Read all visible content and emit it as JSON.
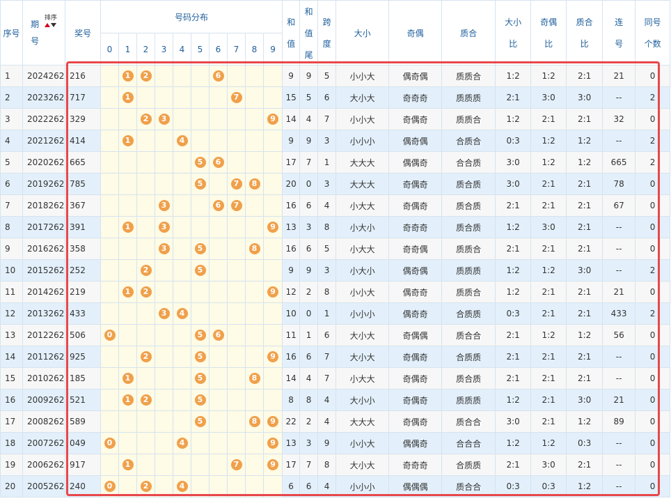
{
  "headers": {
    "seq": "序号",
    "period_line1": "期",
    "period_line2": "号",
    "sort_label": "排序",
    "prize": "奖号",
    "distribution": "号码分布",
    "digits": [
      "0",
      "1",
      "2",
      "3",
      "4",
      "5",
      "6",
      "7",
      "8",
      "9"
    ],
    "sum_line1": "和",
    "sum_line2": "值",
    "sumtail_line1": "和",
    "sumtail_line2": "值",
    "sumtail_line3": "尾",
    "span_line1": "跨",
    "span_line2": "度",
    "size": "大小",
    "parity": "奇偶",
    "prime": "质合",
    "size_ratio_line1": "大小",
    "size_ratio_line2": "比",
    "parity_ratio_line1": "奇偶",
    "parity_ratio_line2": "比",
    "prime_ratio_line1": "质合",
    "prime_ratio_line2": "比",
    "consec_line1": "连",
    "consec_line2": "号",
    "same_line1": "同号",
    "same_line2": "个数"
  },
  "colors": {
    "ball": "#f0a04b",
    "header_text": "#1e5f9c",
    "highlight_box": "#e8474a",
    "row_alt": "#e3f0fb",
    "dist_bg": "#fefbe6"
  },
  "rows": [
    {
      "seq": "1",
      "period": "2024262",
      "prize": "216",
      "sum": "9",
      "tail": "9",
      "span": "5",
      "size": "小小大",
      "parity": "偶奇偶",
      "prime": "质质合",
      "size_ratio": "1:2",
      "parity_ratio": "1:2",
      "prime_ratio": "2:1",
      "consec": "21",
      "same": "0"
    },
    {
      "seq": "2",
      "period": "2023262",
      "prize": "717",
      "sum": "15",
      "tail": "5",
      "span": "6",
      "size": "大小大",
      "parity": "奇奇奇",
      "prime": "质质质",
      "size_ratio": "2:1",
      "parity_ratio": "3:0",
      "prime_ratio": "3:0",
      "consec": "--",
      "same": "2"
    },
    {
      "seq": "3",
      "period": "2022262",
      "prize": "329",
      "sum": "14",
      "tail": "4",
      "span": "7",
      "size": "小小大",
      "parity": "奇偶奇",
      "prime": "质质合",
      "size_ratio": "1:2",
      "parity_ratio": "2:1",
      "prime_ratio": "2:1",
      "consec": "32",
      "same": "0"
    },
    {
      "seq": "4",
      "period": "2021262",
      "prize": "414",
      "sum": "9",
      "tail": "9",
      "span": "3",
      "size": "小小小",
      "parity": "偶奇偶",
      "prime": "合质合",
      "size_ratio": "0:3",
      "parity_ratio": "1:2",
      "prime_ratio": "1:2",
      "consec": "--",
      "same": "2"
    },
    {
      "seq": "5",
      "period": "2020262",
      "prize": "665",
      "sum": "17",
      "tail": "7",
      "span": "1",
      "size": "大大大",
      "parity": "偶偶奇",
      "prime": "合合质",
      "size_ratio": "3:0",
      "parity_ratio": "1:2",
      "prime_ratio": "1:2",
      "consec": "665",
      "same": "2"
    },
    {
      "seq": "6",
      "period": "2019262",
      "prize": "785",
      "sum": "20",
      "tail": "0",
      "span": "3",
      "size": "大大大",
      "parity": "奇偶奇",
      "prime": "质合质",
      "size_ratio": "3:0",
      "parity_ratio": "2:1",
      "prime_ratio": "2:1",
      "consec": "78",
      "same": "0"
    },
    {
      "seq": "7",
      "period": "2018262",
      "prize": "367",
      "sum": "16",
      "tail": "6",
      "span": "4",
      "size": "小大大",
      "parity": "奇偶奇",
      "prime": "质合质",
      "size_ratio": "2:1",
      "parity_ratio": "2:1",
      "prime_ratio": "2:1",
      "consec": "67",
      "same": "0"
    },
    {
      "seq": "8",
      "period": "2017262",
      "prize": "391",
      "sum": "13",
      "tail": "3",
      "span": "8",
      "size": "小大小",
      "parity": "奇奇奇",
      "prime": "质合质",
      "size_ratio": "1:2",
      "parity_ratio": "3:0",
      "prime_ratio": "2:1",
      "consec": "--",
      "same": "0"
    },
    {
      "seq": "9",
      "period": "2016262",
      "prize": "358",
      "sum": "16",
      "tail": "6",
      "span": "5",
      "size": "小大大",
      "parity": "奇奇偶",
      "prime": "质质合",
      "size_ratio": "2:1",
      "parity_ratio": "2:1",
      "prime_ratio": "2:1",
      "consec": "--",
      "same": "0"
    },
    {
      "seq": "10",
      "period": "2015262",
      "prize": "252",
      "sum": "9",
      "tail": "9",
      "span": "3",
      "size": "小大小",
      "parity": "偶奇偶",
      "prime": "质质质",
      "size_ratio": "1:2",
      "parity_ratio": "1:2",
      "prime_ratio": "3:0",
      "consec": "--",
      "same": "2"
    },
    {
      "seq": "11",
      "period": "2014262",
      "prize": "219",
      "sum": "12",
      "tail": "2",
      "span": "8",
      "size": "小小大",
      "parity": "偶奇奇",
      "prime": "质质合",
      "size_ratio": "1:2",
      "parity_ratio": "2:1",
      "prime_ratio": "2:1",
      "consec": "21",
      "same": "0"
    },
    {
      "seq": "12",
      "period": "2013262",
      "prize": "433",
      "sum": "10",
      "tail": "0",
      "span": "1",
      "size": "小小小",
      "parity": "偶奇奇",
      "prime": "合质质",
      "size_ratio": "0:3",
      "parity_ratio": "2:1",
      "prime_ratio": "2:1",
      "consec": "433",
      "same": "2"
    },
    {
      "seq": "13",
      "period": "2012262",
      "prize": "506",
      "sum": "11",
      "tail": "1",
      "span": "6",
      "size": "大小大",
      "parity": "奇偶偶",
      "prime": "质合合",
      "size_ratio": "2:1",
      "parity_ratio": "1:2",
      "prime_ratio": "1:2",
      "consec": "56",
      "same": "0"
    },
    {
      "seq": "14",
      "period": "2011262",
      "prize": "925",
      "sum": "16",
      "tail": "6",
      "span": "7",
      "size": "大小大",
      "parity": "奇偶奇",
      "prime": "合质质",
      "size_ratio": "2:1",
      "parity_ratio": "2:1",
      "prime_ratio": "2:1",
      "consec": "--",
      "same": "0"
    },
    {
      "seq": "15",
      "period": "2010262",
      "prize": "185",
      "sum": "14",
      "tail": "4",
      "span": "7",
      "size": "小大大",
      "parity": "奇偶奇",
      "prime": "质合质",
      "size_ratio": "2:1",
      "parity_ratio": "2:1",
      "prime_ratio": "2:1",
      "consec": "--",
      "same": "0"
    },
    {
      "seq": "16",
      "period": "2009262",
      "prize": "521",
      "sum": "8",
      "tail": "8",
      "span": "4",
      "size": "大小小",
      "parity": "奇偶奇",
      "prime": "质质质",
      "size_ratio": "1:2",
      "parity_ratio": "2:1",
      "prime_ratio": "3:0",
      "consec": "21",
      "same": "0"
    },
    {
      "seq": "17",
      "period": "2008262",
      "prize": "589",
      "sum": "22",
      "tail": "2",
      "span": "4",
      "size": "大大大",
      "parity": "奇偶奇",
      "prime": "质合合",
      "size_ratio": "3:0",
      "parity_ratio": "2:1",
      "prime_ratio": "1:2",
      "consec": "89",
      "same": "0"
    },
    {
      "seq": "18",
      "period": "2007262",
      "prize": "049",
      "sum": "13",
      "tail": "3",
      "span": "9",
      "size": "小小大",
      "parity": "偶偶奇",
      "prime": "合合合",
      "size_ratio": "1:2",
      "parity_ratio": "1:2",
      "prime_ratio": "0:3",
      "consec": "--",
      "same": "0"
    },
    {
      "seq": "19",
      "period": "2006262",
      "prize": "917",
      "sum": "17",
      "tail": "7",
      "span": "8",
      "size": "大小大",
      "parity": "奇奇奇",
      "prime": "合质质",
      "size_ratio": "2:1",
      "parity_ratio": "3:0",
      "prime_ratio": "2:1",
      "consec": "--",
      "same": "0"
    },
    {
      "seq": "20",
      "period": "2005262",
      "prize": "240",
      "sum": "6",
      "tail": "6",
      "span": "4",
      "size": "小小小",
      "parity": "偶偶偶",
      "prime": "质合合",
      "size_ratio": "0:3",
      "parity_ratio": "0:3",
      "prime_ratio": "1:2",
      "consec": "--",
      "same": "0"
    }
  ]
}
